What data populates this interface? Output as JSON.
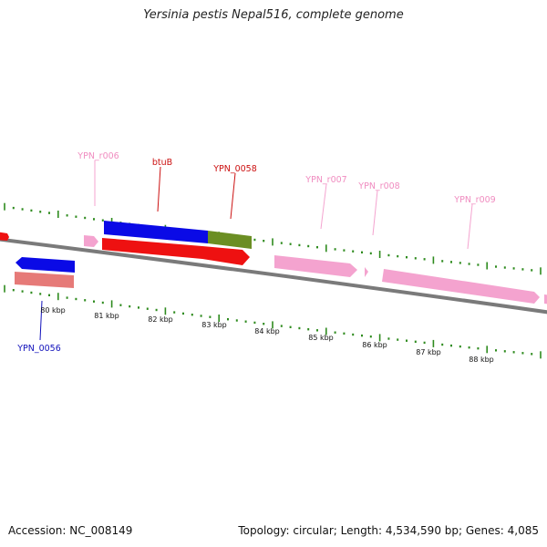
{
  "title": "Yersinia pestis Nepal516, complete genome",
  "footer": {
    "accession": "Accession: NC_008149",
    "summary": "Topology: circular; Length: 4,534,590 bp; Genes: 4,085"
  },
  "colors": {
    "backbone": "#7a7a7a",
    "tick": "#2e8b1e",
    "cds_blue": "#0a0ae6",
    "cds_red": "#ee1111",
    "cds_olive": "#6b8e23",
    "rrna_pink": "#f4a3cf",
    "gene_salmon": "#e67a78"
  },
  "scale_labels": [
    "80 kbp",
    "81 kbp",
    "82 kbp",
    "83 kbp",
    "84 kbp",
    "85 kbp",
    "86 kbp",
    "87 kbp",
    "88 kbp"
  ],
  "feature_labels": [
    {
      "text": "YPN_r006",
      "color": "#f08cc0"
    },
    {
      "text": "btuB",
      "color": "#cc1111"
    },
    {
      "text": "YPN_0058",
      "color": "#cc1111"
    },
    {
      "text": "YPN_r007",
      "color": "#f08cc0"
    },
    {
      "text": "YPN_r008",
      "color": "#f08cc0"
    },
    {
      "text": "YPN_r009",
      "color": "#f08cc0"
    },
    {
      "text": "YPN_0056",
      "color": "#1111bb"
    }
  ]
}
